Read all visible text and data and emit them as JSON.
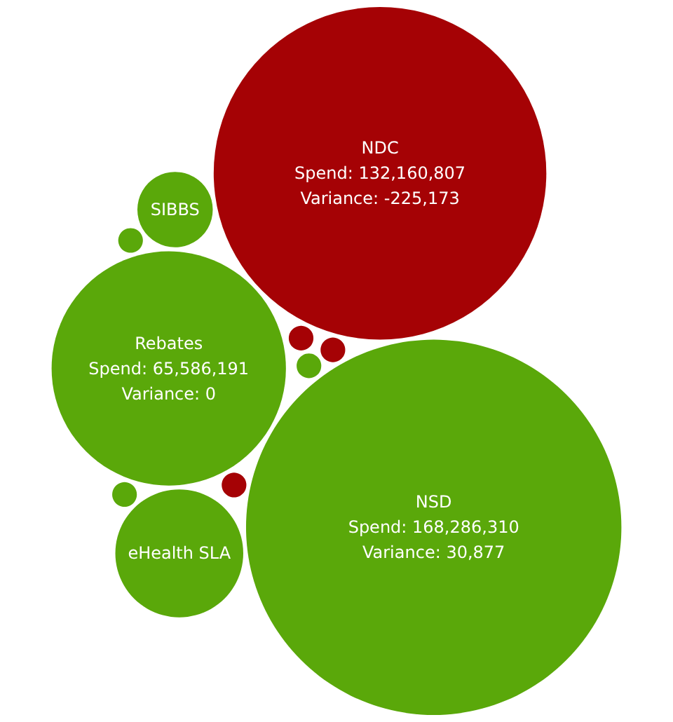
{
  "chart_data": {
    "type": "other",
    "categories": [
      "NSD",
      "NDC",
      "Rebates",
      "eHealth SLA",
      "SIBBS",
      null,
      null,
      null,
      null,
      null,
      null
    ],
    "series": [
      {
        "colors": [
          "#5aa80a",
          "#a50205",
          "#5aa80a",
          "#5aa80a",
          "#5aa80a",
          "#a50205",
          "#5aa80a",
          "#a50205",
          "#a50205",
          "#5aa80a",
          "#5aa80a"
        ],
        "values": [
          168286310,
          132160807,
          65586191,
          null,
          null,
          null,
          null,
          null,
          null,
          null,
          null
        ],
        "value_labels": [
          "Spend: 168,286,310",
          "Spend: 132,160,807",
          "Spend: 65,586,191",
          null,
          null,
          null,
          null,
          null,
          null,
          null,
          null
        ]
      },
      {
        "values": [
          30877,
          -225173,
          0,
          null,
          null,
          null,
          null,
          null,
          null,
          null,
          null
        ],
        "value_labels": [
          "Variance: 30,877",
          "Variance: -225,173",
          "Variance: 0",
          null,
          null,
          null,
          null,
          null,
          null,
          null,
          null
        ]
      }
    ]
  }
}
